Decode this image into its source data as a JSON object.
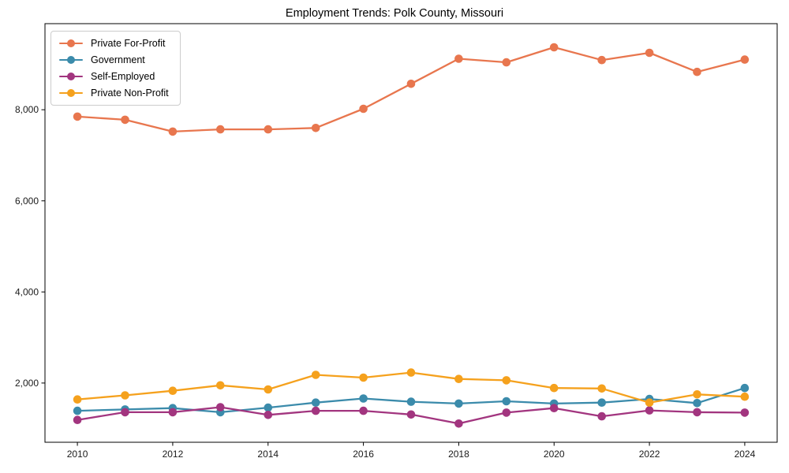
{
  "chart_data": {
    "type": "line",
    "title": "Employment Trends: Polk County, Missouri",
    "xlabel": "",
    "ylabel": "",
    "x": [
      2010,
      2011,
      2012,
      2013,
      2014,
      2015,
      2016,
      2017,
      2018,
      2019,
      2020,
      2021,
      2022,
      2023,
      2024
    ],
    "x_ticks": [
      2010,
      2012,
      2014,
      2016,
      2018,
      2020,
      2022,
      2024
    ],
    "x_tick_labels": [
      "2010",
      "2012",
      "2014",
      "2016",
      "2018",
      "2020",
      "2022",
      "2024"
    ],
    "y_ticks": [
      2000,
      4000,
      6000,
      8000
    ],
    "y_tick_labels": [
      "2,000",
      "4,000",
      "6,000",
      "8,000"
    ],
    "xlim": [
      2009.32,
      2024.68
    ],
    "ylim": [
      700,
      9890
    ],
    "grid": false,
    "legend_position": "upper left",
    "series": [
      {
        "name": "Private For-Profit",
        "color": "#e8764e",
        "values": [
          7850,
          7780,
          7520,
          7570,
          7570,
          7600,
          8020,
          8570,
          9120,
          9040,
          9370,
          9090,
          9250,
          8830,
          9100
        ]
      },
      {
        "name": "Government",
        "color": "#3b8bab",
        "values": [
          1390,
          1420,
          1450,
          1360,
          1460,
          1570,
          1660,
          1590,
          1550,
          1600,
          1550,
          1570,
          1650,
          1560,
          1890
        ]
      },
      {
        "name": "Self-Employed",
        "color": "#a2357f",
        "values": [
          1190,
          1360,
          1360,
          1470,
          1300,
          1390,
          1390,
          1310,
          1110,
          1350,
          1450,
          1270,
          1400,
          1360,
          1350
        ]
      },
      {
        "name": "Private Non-Profit",
        "color": "#f5a11d",
        "values": [
          1640,
          1730,
          1830,
          1950,
          1860,
          2180,
          2120,
          2230,
          2090,
          2060,
          1890,
          1880,
          1570,
          1750,
          1700
        ]
      }
    ]
  }
}
